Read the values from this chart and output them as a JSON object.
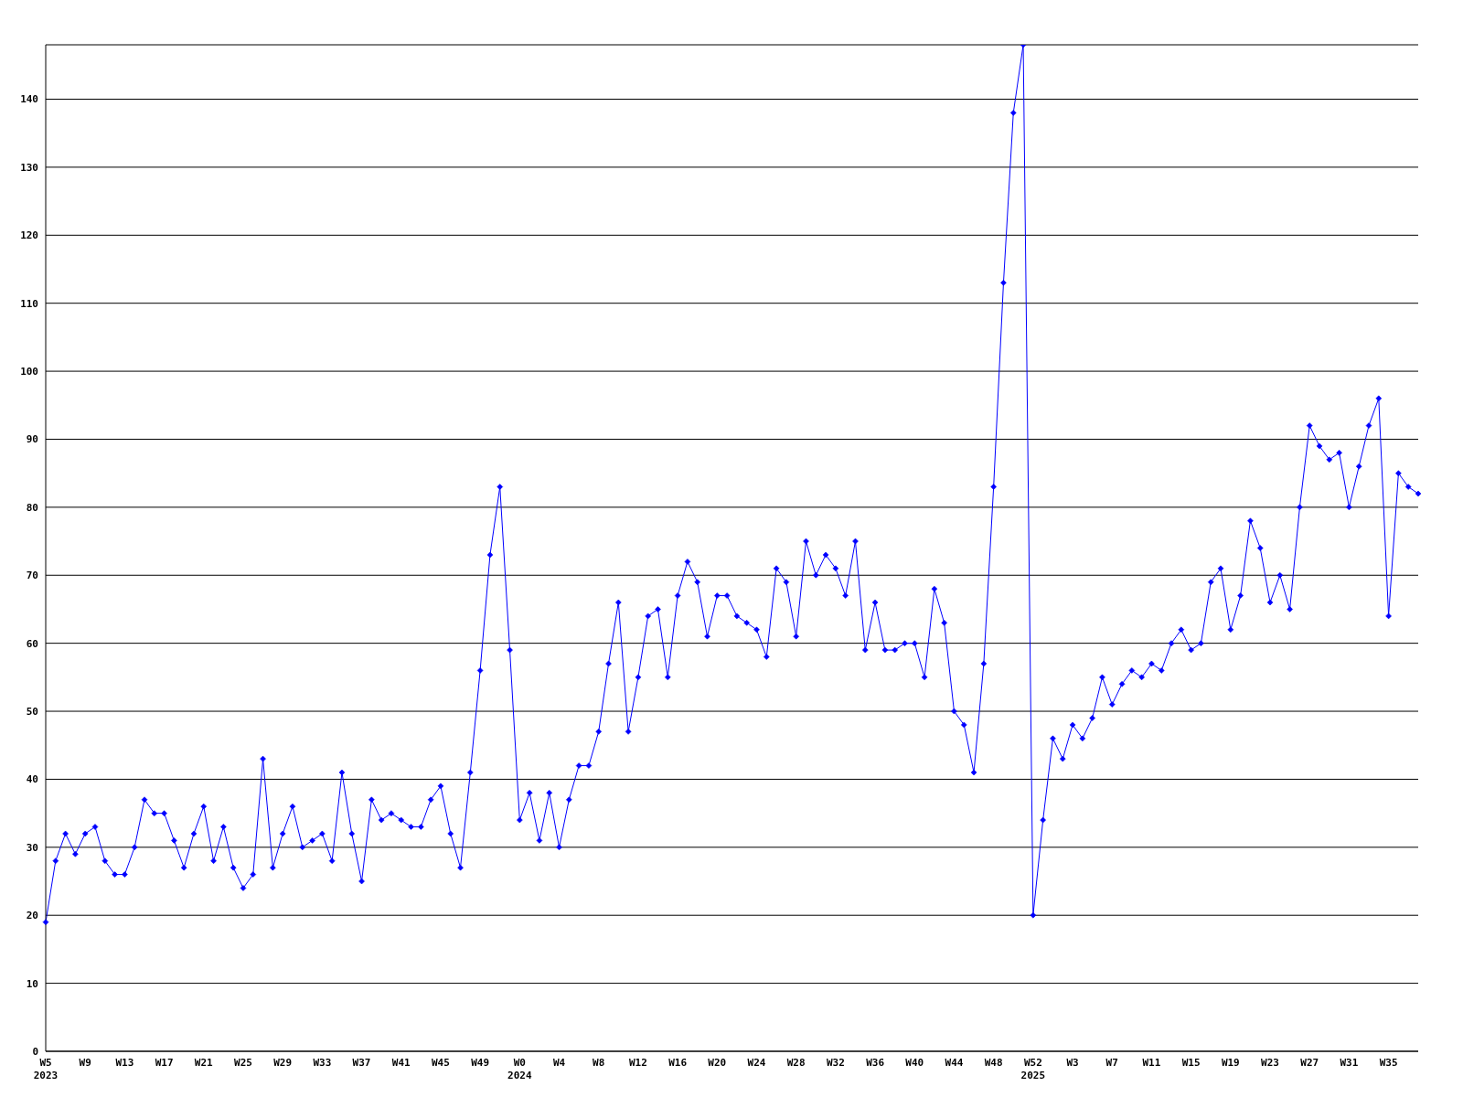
{
  "chart_data": {
    "type": "line",
    "categories": [
      "W5\n2023",
      null,
      null,
      null,
      "W9",
      null,
      null,
      null,
      "W13",
      null,
      null,
      null,
      "W17",
      null,
      null,
      null,
      "W21",
      null,
      null,
      null,
      "W25",
      null,
      null,
      null,
      "W29",
      null,
      null,
      null,
      "W33",
      null,
      null,
      null,
      "W37",
      null,
      null,
      null,
      "W41",
      null,
      null,
      null,
      "W45",
      null,
      null,
      null,
      "W49",
      null,
      null,
      null,
      "W0\n2024",
      null,
      null,
      null,
      "W4",
      null,
      null,
      null,
      "W8",
      null,
      null,
      null,
      "W12",
      null,
      null,
      null,
      "W16",
      null,
      null,
      null,
      "W20",
      null,
      null,
      null,
      "W24",
      null,
      null,
      null,
      "W28",
      null,
      null,
      null,
      "W32",
      null,
      null,
      null,
      "W36",
      null,
      null,
      null,
      "W40",
      null,
      null,
      null,
      "W44",
      null,
      null,
      null,
      "W48",
      null,
      null,
      null,
      "W52\n2025",
      null,
      null,
      null,
      "W3",
      null,
      null,
      null,
      "W7",
      null,
      null,
      null,
      "W11",
      null,
      null,
      null,
      "W15",
      null,
      null,
      null,
      "W19",
      null,
      null,
      null,
      "W23",
      null,
      null,
      null,
      "W27",
      null,
      null,
      null,
      "W31",
      null,
      null,
      null,
      "W35",
      null,
      null,
      null
    ],
    "series": [
      {
        "color": "#0000ff",
        "values": [
          19,
          28,
          32,
          29,
          32,
          33,
          28,
          26,
          26,
          30,
          37,
          35,
          35,
          31,
          27,
          32,
          36,
          28,
          33,
          27,
          24,
          26,
          43,
          27,
          32,
          36,
          30,
          31,
          32,
          28,
          41,
          32,
          25,
          37,
          34,
          35,
          34,
          33,
          33,
          37,
          39,
          32,
          27,
          41,
          56,
          73,
          83,
          59,
          34,
          38,
          31,
          38,
          30,
          37,
          42,
          42,
          47,
          57,
          66,
          47,
          55,
          64,
          65,
          55,
          67,
          72,
          69,
          61,
          67,
          67,
          64,
          63,
          62,
          58,
          71,
          69,
          61,
          75,
          70,
          73,
          71,
          67,
          75,
          59,
          66,
          59,
          59,
          60,
          60,
          55,
          68,
          63,
          50,
          48,
          41,
          57,
          83,
          113,
          138,
          148,
          20,
          34,
          46,
          43,
          48,
          46,
          49,
          55,
          51,
          54,
          56,
          55,
          57,
          56,
          60,
          62,
          59,
          60,
          69,
          71,
          62,
          67,
          78,
          74,
          66,
          70,
          65,
          80,
          92,
          89,
          87,
          88,
          80,
          86,
          92,
          96,
          64,
          85,
          83,
          82
        ]
      }
    ],
    "ylim": [
      0,
      148
    ],
    "yticks": [
      0,
      10,
      20,
      30,
      40,
      50,
      60,
      70,
      80,
      90,
      100,
      110,
      120,
      130,
      140
    ],
    "grid": "y",
    "marker": "diamond",
    "line_style": "solid"
  }
}
